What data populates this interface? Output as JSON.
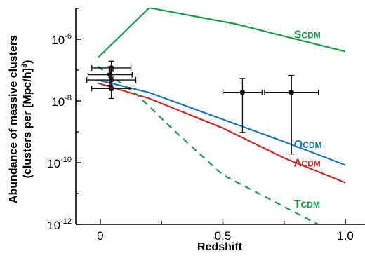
{
  "chart_data": {
    "type": "line",
    "title": "",
    "xlabel": "Redshift",
    "ylabel_line1": "Abundance of massive clusters",
    "ylabel_line2": "(clusters per [Mpc/h]",
    "ylabel_sup": "3",
    "ylabel_close": ")",
    "xlim": [
      -0.1,
      1.08
    ],
    "ylim_log10": [
      -12,
      -5
    ],
    "yscale": "log",
    "grid": false,
    "x_ticks": [
      {
        "value": 0,
        "label": "0"
      },
      {
        "value": 0.5,
        "label": "0.5"
      },
      {
        "value": 1.0,
        "label": "1.0"
      }
    ],
    "x_minor_ticks": [
      0.25,
      0.75
    ],
    "y_ticks": [
      {
        "exp": -6,
        "base": "10",
        "sup": "-6"
      },
      {
        "exp": -8,
        "base": "10",
        "sup": "-8"
      },
      {
        "exp": -10,
        "base": "10",
        "sup": "-10"
      },
      {
        "exp": -12,
        "base": "10",
        "sup": "-12"
      }
    ],
    "y_minor_ticks": [
      -5,
      -7,
      -9,
      -11
    ],
    "series": [
      {
        "key": "scdm",
        "big": "S",
        "small": "CDM",
        "color": "#1a9d4a",
        "dash": false,
        "points": [
          [
            -0.01,
            -6.6
          ],
          [
            0.2,
            -4.98
          ],
          [
            0.55,
            -5.5
          ],
          [
            1.0,
            -6.4
          ]
        ],
        "label_pos": [
          0.79,
          -5.97
        ]
      },
      {
        "key": "ocdm",
        "big": "O",
        "small": "CDM",
        "color": "#1b75bb",
        "dash": false,
        "points": [
          [
            -0.01,
            -7.32
          ],
          [
            0.2,
            -7.73
          ],
          [
            0.5,
            -8.6
          ],
          [
            0.75,
            -9.32
          ],
          [
            1.0,
            -10.08
          ]
        ],
        "label_pos": [
          0.79,
          -9.52
        ]
      },
      {
        "key": "lcdm",
        "big": "Λ",
        "small": "CDM",
        "color": "#d02a2a",
        "dash": false,
        "points": [
          [
            -0.01,
            -7.42
          ],
          [
            0.2,
            -7.92
          ],
          [
            0.5,
            -8.88
          ],
          [
            0.75,
            -9.85
          ],
          [
            1.0,
            -10.65
          ]
        ],
        "label_pos": [
          0.79,
          -10.12
        ]
      },
      {
        "key": "tcdm",
        "big": "T",
        "small": "CDM",
        "color": "#1a9d4a",
        "dash": true,
        "points": [
          [
            -0.01,
            -6.88
          ],
          [
            0.15,
            -7.8
          ],
          [
            0.3,
            -8.95
          ],
          [
            0.5,
            -10.4
          ],
          [
            0.7,
            -11.22
          ],
          [
            0.9,
            -12.05
          ]
        ],
        "label_pos": [
          0.79,
          -11.45
        ]
      }
    ],
    "data_points": [
      {
        "x": 0.045,
        "y": -6.93,
        "xerr": [
          0.08,
          0.08
        ],
        "yerr": [
          0.3,
          0.22
        ]
      },
      {
        "x": 0.04,
        "y": -7.15,
        "xerr": [
          0.09,
          0.09
        ],
        "yerr": [
          0.34,
          0.26
        ]
      },
      {
        "x": 0.045,
        "y": -7.32,
        "xerr": [
          0.1,
          0.1
        ],
        "yerr": [
          0.28,
          0.3
        ]
      },
      {
        "x": 0.045,
        "y": -7.6,
        "xerr": [
          0.08,
          0.08
        ],
        "yerr": [
          0.32,
          0.28
        ]
      },
      {
        "x": 0.58,
        "y": -7.72,
        "xerr": [
          0.08,
          0.08
        ],
        "yerr": [
          1.3,
          0.45
        ]
      },
      {
        "x": 0.78,
        "y": -7.72,
        "xerr": [
          0.11,
          0.11
        ],
        "yerr": [
          2.0,
          0.55
        ]
      }
    ]
  }
}
